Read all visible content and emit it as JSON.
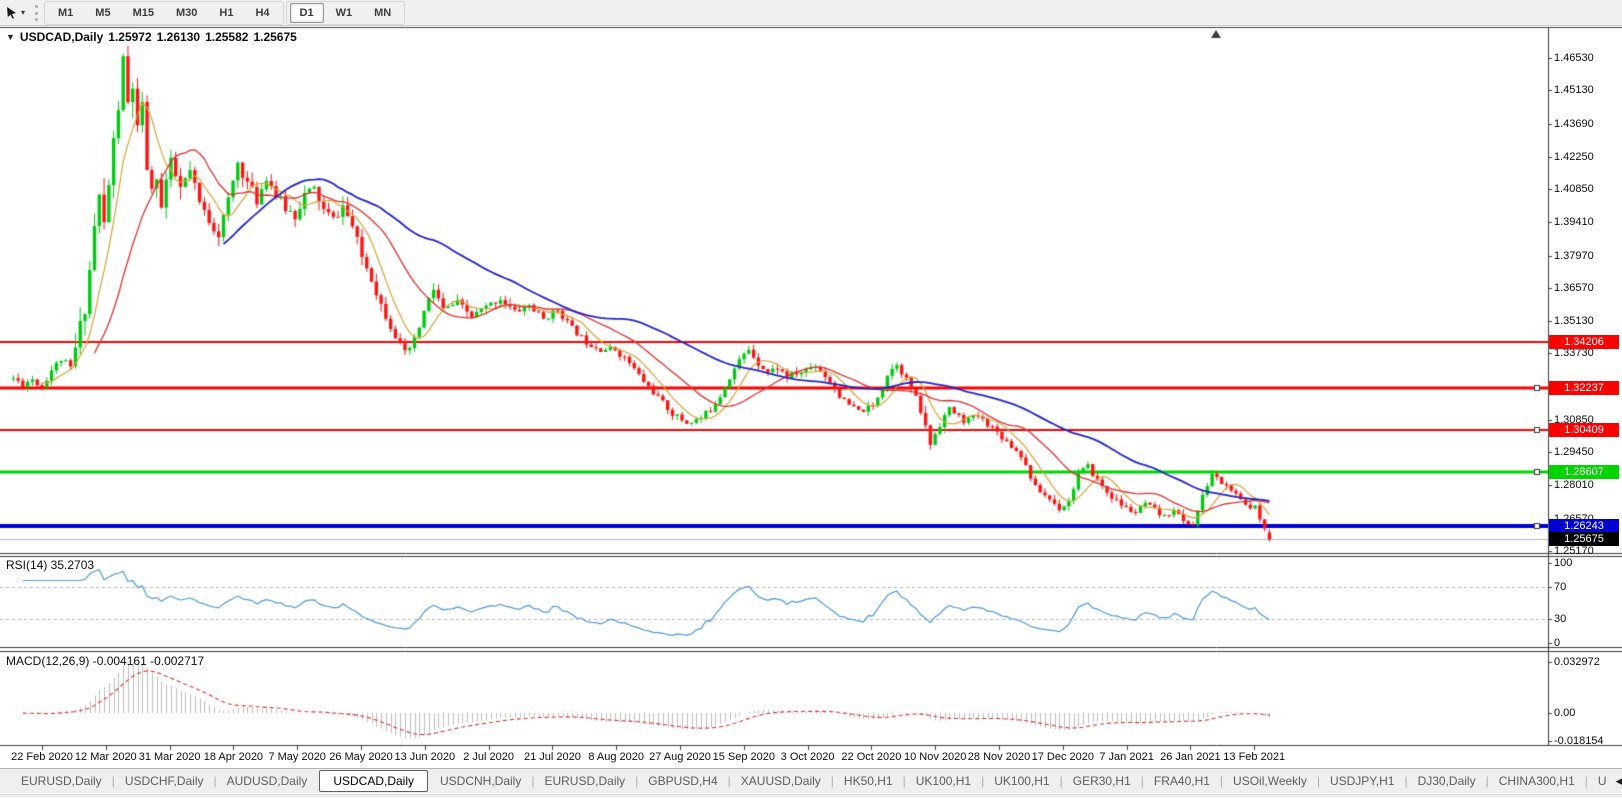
{
  "toolbar": {
    "cursor_tool": "cursor",
    "timeframe_groups": [
      [
        "M1",
        "M5",
        "M15",
        "M30",
        "H1",
        "H4"
      ],
      [
        "D1",
        "W1",
        "MN"
      ]
    ],
    "active_timeframe": "D1"
  },
  "chart_header": {
    "collapse_icon": "▼",
    "symbol_label": "USDCAD,Daily",
    "open": "1.25972",
    "high": "1.26130",
    "low": "1.25582",
    "close": "1.25675"
  },
  "price_axis": {
    "ticks": [
      "1.46530",
      "1.45130",
      "1.43690",
      "1.42250",
      "1.40850",
      "1.39410",
      "1.37970",
      "1.36570",
      "1.35130",
      "1.33730",
      "1.30850",
      "1.29450",
      "1.28010",
      "1.26570",
      "1.25170"
    ],
    "level_labels": [
      {
        "text": "1.34206",
        "price": 1.34206,
        "bg": "#ff0000",
        "fg": "#ffffff",
        "line_width": 2,
        "handle": false
      },
      {
        "text": "1.32237",
        "price": 1.32237,
        "bg": "#ff0000",
        "fg": "#ffffff",
        "line_width": 3,
        "handle": true
      },
      {
        "text": "1.30409",
        "price": 1.30409,
        "bg": "#ff0000",
        "fg": "#ffffff",
        "line_width": 2,
        "handle": true
      },
      {
        "text": "1.28607",
        "price": 1.28607,
        "bg": "#00d500",
        "fg": "#ffffff",
        "line_width": 3,
        "handle": true
      },
      {
        "text": "1.26243",
        "price": 1.26243,
        "bg": "#0000d0",
        "fg": "#ffffff",
        "line_width": 4,
        "handle": true
      }
    ],
    "current_price": {
      "text": "1.25675",
      "price": 1.25675,
      "bg": "#000000",
      "fg": "#ffffff",
      "line_color": "#b6b6b6"
    }
  },
  "rsi_pane": {
    "label": "RSI(14) 35.2703",
    "scale": [
      {
        "text": "100",
        "value": 100
      },
      {
        "text": "70",
        "value": 70
      },
      {
        "text": "30",
        "value": 30
      },
      {
        "text": "0",
        "value": 0
      }
    ],
    "guide_levels": [
      70,
      30
    ],
    "line_color": "#4f9ad8"
  },
  "macd_pane": {
    "label": "MACD(12,26,9) -0.004161 -0.002717",
    "scale": [
      {
        "text": "0.032972",
        "value": 0.032972
      },
      {
        "text": "0.00",
        "value": 0
      },
      {
        "text": "-0.018154",
        "value": -0.018154
      }
    ],
    "histogram_color": "#bdbdbd",
    "signal_color": "#e03030"
  },
  "date_axis": [
    "22 Feb 2020",
    "12 Mar 2020",
    "31 Mar 2020",
    "18 Apr 2020",
    "7 May 2020",
    "26 May 2020",
    "13 Jun 2020",
    "2 Jul 2020",
    "21 Jul 2020",
    "8 Aug 2020",
    "27 Aug 2020",
    "15 Sep 2020",
    "3 Oct 2020",
    "22 Oct 2020",
    "10 Nov 2020",
    "28 Nov 2020",
    "17 Dec 2020",
    "7 Jan 2021",
    "26 Jan 2021",
    "13 Feb 2021"
  ],
  "tab_bar": {
    "tabs": [
      "EURUSD,Daily",
      "USDCHF,Daily",
      "AUDUSD,Daily",
      "USDCAD,Daily",
      "USDCNH,Daily",
      "EURUSD,Daily",
      "GBPUSD,H4",
      "XAUUSD,Daily",
      "HK50,H1",
      "UK100,H1",
      "UK100,H1",
      "GER30,H1",
      "FRA40,H1",
      "USOil,Weekly",
      "USDJPY,H1",
      "DJ30,Daily",
      "CHINA300,H1",
      "U"
    ],
    "active_index": 3
  },
  "chart_data": {
    "type": "candlestick",
    "symbol": "USDCAD",
    "timeframe": "Daily",
    "last_bar": {
      "open": 1.25972,
      "high": 1.2613,
      "low": 1.25582,
      "close": 1.25675
    },
    "visible_price_range": [
      1.2508,
      1.4783
    ],
    "bar_count": 264,
    "seed": 11,
    "candle_colors": {
      "up": "#00cc11",
      "down": "#ff1414"
    },
    "moving_averages": [
      {
        "period": 7,
        "color": "#d9a43c",
        "width": 1.2
      },
      {
        "period": 18,
        "color": "#e03232",
        "width": 1.3
      },
      {
        "period": 45,
        "color": "#2525c8",
        "width": 1.8
      }
    ],
    "indicators": {
      "rsi": {
        "period": 14,
        "last_value": 35.2703
      },
      "macd": {
        "fast": 12,
        "slow": 26,
        "signal": 9,
        "last_macd": -0.004161,
        "last_signal": -0.002717,
        "display_max": 0.033
      }
    },
    "price_anchors": [
      [
        0,
        1.3265
      ],
      [
        2,
        1.324
      ],
      [
        4,
        1.3262
      ],
      [
        6,
        1.323
      ],
      [
        8,
        1.3302
      ],
      [
        10,
        1.3348
      ],
      [
        12,
        1.331
      ],
      [
        13,
        1.3392
      ],
      [
        14,
        1.3482
      ],
      [
        15,
        1.3585
      ],
      [
        16,
        1.3735
      ],
      [
        17,
        1.3925
      ],
      [
        18,
        1.4048
      ],
      [
        19,
        1.393
      ],
      [
        20,
        1.4105
      ],
      [
        21,
        1.4285
      ],
      [
        22,
        1.4445
      ],
      [
        23,
        1.463
      ],
      [
        24,
        1.445
      ],
      [
        25,
        1.4532
      ],
      [
        26,
        1.433
      ],
      [
        27,
        1.4425
      ],
      [
        28,
        1.418
      ],
      [
        29,
        1.4062
      ],
      [
        30,
        1.4152
      ],
      [
        31,
        1.4002
      ],
      [
        32,
        1.4122
      ],
      [
        33,
        1.419
      ],
      [
        35,
        1.4085
      ],
      [
        37,
        1.416
      ],
      [
        39,
        1.4022
      ],
      [
        41,
        1.3952
      ],
      [
        43,
        1.3892
      ],
      [
        45,
        1.4032
      ],
      [
        47,
        1.42
      ],
      [
        49,
        1.4112
      ],
      [
        51,
        1.4035
      ],
      [
        53,
        1.4142
      ],
      [
        55,
        1.4062
      ],
      [
        57,
        1.4002
      ],
      [
        59,
        1.3972
      ],
      [
        61,
        1.4062
      ],
      [
        63,
        1.4082
      ],
      [
        65,
        1.3992
      ],
      [
        67,
        1.3952
      ],
      [
        69,
        1.4012
      ],
      [
        71,
        1.3922
      ],
      [
        73,
        1.3792
      ],
      [
        75,
        1.3702
      ],
      [
        77,
        1.3585
      ],
      [
        80,
        1.3455
      ],
      [
        82,
        1.3365
      ],
      [
        84,
        1.3425
      ],
      [
        86,
        1.3552
      ],
      [
        88,
        1.3652
      ],
      [
        90,
        1.3562
      ],
      [
        93,
        1.3592
      ],
      [
        96,
        1.3532
      ],
      [
        99,
        1.3572
      ],
      [
        102,
        1.3612
      ],
      [
        105,
        1.3552
      ],
      [
        108,
        1.3582
      ],
      [
        111,
        1.3522
      ],
      [
        114,
        1.3562
      ],
      [
        117,
        1.3482
      ],
      [
        120,
        1.3422
      ],
      [
        123,
        1.3392
      ],
      [
        126,
        1.339
      ],
      [
        129,
        1.3332
      ],
      [
        132,
        1.3252
      ],
      [
        135,
        1.3182
      ],
      [
        138,
        1.3112
      ],
      [
        141,
        1.3072
      ],
      [
        144,
        1.3092
      ],
      [
        146,
        1.3132
      ],
      [
        148,
        1.3192
      ],
      [
        150,
        1.3272
      ],
      [
        152,
        1.3342
      ],
      [
        154,
        1.3392
      ],
      [
        156,
        1.3332
      ],
      [
        158,
        1.3292
      ],
      [
        160,
        1.3312
      ],
      [
        162,
        1.3272
      ],
      [
        165,
        1.3292
      ],
      [
        168,
        1.3322
      ],
      [
        171,
        1.3252
      ],
      [
        174,
        1.3162
      ],
      [
        177,
        1.3122
      ],
      [
        180,
        1.3142
      ],
      [
        183,
        1.3282
      ],
      [
        185,
        1.3332
      ],
      [
        188,
        1.3222
      ],
      [
        190,
        1.3122
      ],
      [
        192,
        1.2982
      ],
      [
        194,
        1.3072
      ],
      [
        196,
        1.3132
      ],
      [
        199,
        1.3082
      ],
      [
        202,
        1.3102
      ],
      [
        205,
        1.3052
      ],
      [
        208,
        1.2992
      ],
      [
        211,
        1.2932
      ],
      [
        214,
        1.2792
      ],
      [
        217,
        1.2742
      ],
      [
        219,
        1.2702
      ],
      [
        221,
        1.2732
      ],
      [
        223,
        1.2852
      ],
      [
        225,
        1.2882
      ],
      [
        227,
        1.2822
      ],
      [
        229,
        1.2772
      ],
      [
        231,
        1.2732
      ],
      [
        233,
        1.2702
      ],
      [
        235,
        1.2682
      ],
      [
        237,
        1.2722
      ],
      [
        239,
        1.2692
      ],
      [
        241,
        1.2662
      ],
      [
        243,
        1.2702
      ],
      [
        245,
        1.2642
      ],
      [
        247,
        1.2632
      ],
      [
        249,
        1.2752
      ],
      [
        251,
        1.2852
      ],
      [
        253,
        1.2812
      ],
      [
        255,
        1.2782
      ],
      [
        257,
        1.2732
      ],
      [
        259,
        1.2702
      ],
      [
        260,
        1.2722
      ],
      [
        261,
        1.2662
      ],
      [
        262,
        1.2612
      ],
      [
        263,
        1.2567
      ]
    ],
    "volatility_segments": [
      [
        0,
        0.0035
      ],
      [
        13,
        0.0105
      ],
      [
        28,
        0.0078
      ],
      [
        36,
        0.0058
      ],
      [
        71,
        0.0052
      ],
      [
        90,
        0.0038
      ],
      [
        110,
        0.003
      ],
      [
        145,
        0.0033
      ],
      [
        188,
        0.0044
      ],
      [
        196,
        0.0028
      ],
      [
        246,
        0.0026
      ]
    ]
  }
}
